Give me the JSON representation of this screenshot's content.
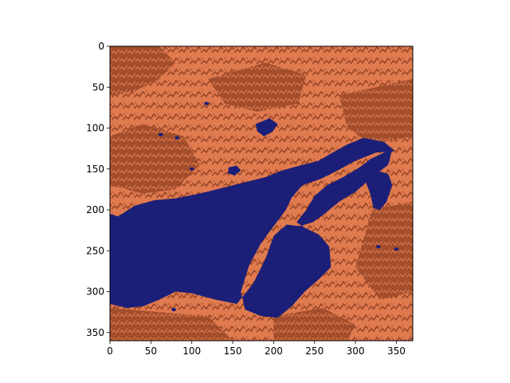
{
  "chart_data": {
    "type": "heatmap",
    "title": "",
    "xlabel": "",
    "ylabel": "",
    "xlim": [
      0,
      370
    ],
    "ylim": [
      360,
      0
    ],
    "x_ticks": [
      0,
      50,
      100,
      150,
      200,
      250,
      300,
      350
    ],
    "y_ticks": [
      0,
      50,
      100,
      150,
      200,
      250,
      300,
      350
    ],
    "x_tick_labels": [
      "0",
      "50",
      "100",
      "150",
      "200",
      "250",
      "300",
      "350"
    ],
    "y_tick_labels": [
      "0",
      "50",
      "100",
      "150",
      "200",
      "250",
      "300",
      "350"
    ],
    "grid": false,
    "legend": "none",
    "colors": {
      "water": "#1c1f78",
      "land_light": "#e07a4f",
      "land_dark": "#9a4828",
      "land_mid": "#c86640"
    },
    "features": {
      "sea": [
        [
          0,
          205
        ],
        [
          10,
          208
        ],
        [
          30,
          195
        ],
        [
          55,
          188
        ],
        [
          80,
          186
        ],
        [
          110,
          180
        ],
        [
          130,
          175
        ],
        [
          150,
          170
        ],
        [
          170,
          165
        ],
        [
          190,
          160
        ],
        [
          210,
          152
        ],
        [
          235,
          145
        ],
        [
          255,
          140
        ],
        [
          272,
          130
        ],
        [
          290,
          120
        ],
        [
          310,
          112
        ],
        [
          335,
          117
        ],
        [
          348,
          128
        ],
        [
          325,
          130
        ],
        [
          300,
          140
        ],
        [
          278,
          152
        ],
        [
          258,
          162
        ],
        [
          235,
          170
        ],
        [
          222,
          185
        ],
        [
          215,
          200
        ],
        [
          200,
          220
        ],
        [
          185,
          240
        ],
        [
          170,
          268
        ],
        [
          160,
          300
        ],
        [
          165,
          322
        ],
        [
          185,
          330
        ],
        [
          205,
          332
        ],
        [
          222,
          318
        ],
        [
          238,
          300
        ],
        [
          255,
          285
        ],
        [
          270,
          270
        ],
        [
          268,
          245
        ],
        [
          255,
          230
        ],
        [
          238,
          222
        ],
        [
          228,
          215
        ],
        [
          240,
          200
        ],
        [
          250,
          183
        ],
        [
          265,
          170
        ],
        [
          285,
          160
        ],
        [
          305,
          148
        ],
        [
          318,
          138
        ],
        [
          345,
          125
        ],
        [
          340,
          145
        ],
        [
          320,
          160
        ],
        [
          300,
          178
        ],
        [
          280,
          190
        ],
        [
          262,
          205
        ],
        [
          248,
          215
        ],
        [
          232,
          220
        ],
        [
          216,
          218
        ],
        [
          208,
          225
        ],
        [
          200,
          232
        ],
        [
          190,
          260
        ],
        [
          175,
          290
        ],
        [
          155,
          315
        ],
        [
          130,
          310
        ],
        [
          100,
          302
        ],
        [
          80,
          300
        ],
        [
          60,
          310
        ],
        [
          40,
          318
        ],
        [
          20,
          320
        ],
        [
          0,
          315
        ]
      ],
      "lake_east": [
        [
          312,
          150
        ],
        [
          325,
          152
        ],
        [
          340,
          156
        ],
        [
          345,
          170
        ],
        [
          338,
          190
        ],
        [
          330,
          200
        ],
        [
          322,
          198
        ],
        [
          318,
          180
        ],
        [
          312,
          165
        ]
      ],
      "lake_west_small": [
        [
          145,
          148
        ],
        [
          155,
          146
        ],
        [
          160,
          152
        ],
        [
          152,
          158
        ],
        [
          144,
          155
        ]
      ],
      "inlet_north": [
        [
          178,
          95
        ],
        [
          195,
          88
        ],
        [
          205,
          95
        ],
        [
          198,
          105
        ],
        [
          188,
          110
        ],
        [
          180,
          104
        ]
      ]
    }
  }
}
